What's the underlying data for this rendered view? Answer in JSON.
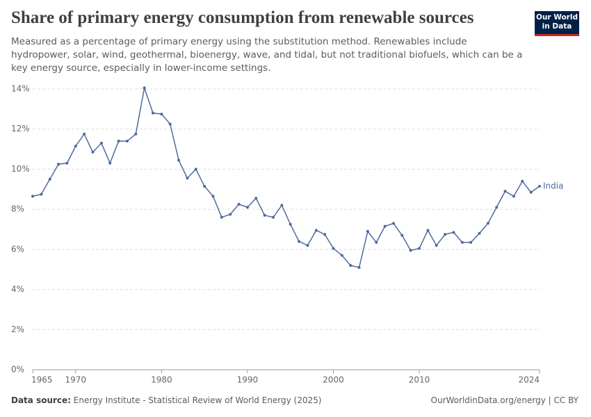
{
  "chart_data": {
    "type": "line",
    "title": "Share of primary energy consumption from renewable sources",
    "subtitle": "Measured as a percentage of primary energy using the substitution method. Renewables include hydropower, solar, wind, geothermal, bioenergy, wave, and tidal, but not traditional biofuels, which can be a key energy source, especially in lower-income settings.",
    "logo": [
      "Our World",
      "in Data"
    ],
    "source_label": "Data source:",
    "source": "Energy Institute - Statistical Review of World Energy (2025)",
    "footer_right": "OurWorldinData.org/energy | CC BY",
    "x": [
      1965,
      1966,
      1967,
      1968,
      1969,
      1970,
      1971,
      1972,
      1973,
      1974,
      1975,
      1976,
      1977,
      1978,
      1979,
      1980,
      1981,
      1982,
      1983,
      1984,
      1985,
      1986,
      1987,
      1988,
      1989,
      1990,
      1991,
      1992,
      1993,
      1994,
      1995,
      1996,
      1997,
      1998,
      1999,
      2000,
      2001,
      2002,
      2003,
      2004,
      2005,
      2006,
      2007,
      2008,
      2009,
      2010,
      2011,
      2012,
      2013,
      2014,
      2015,
      2016,
      2017,
      2018,
      2019,
      2020,
      2021,
      2022,
      2023,
      2024
    ],
    "series": [
      {
        "name": "India",
        "color": "#4c6a9c",
        "values": [
          8.65,
          8.75,
          9.5,
          10.25,
          10.3,
          11.15,
          11.75,
          10.85,
          11.3,
          10.3,
          11.4,
          11.4,
          11.75,
          14.05,
          12.8,
          12.75,
          12.25,
          10.45,
          9.55,
          10.0,
          9.15,
          8.65,
          7.6,
          7.75,
          8.25,
          8.1,
          8.55,
          7.7,
          7.6,
          8.2,
          7.25,
          6.4,
          6.2,
          6.95,
          6.75,
          6.05,
          5.7,
          5.2,
          5.1,
          6.9,
          6.35,
          7.15,
          7.3,
          6.7,
          5.95,
          6.05,
          6.95,
          6.2,
          6.75,
          6.85,
          6.35,
          6.35,
          6.8,
          7.3,
          8.1,
          8.9,
          8.65,
          9.4,
          8.85,
          9.15
        ]
      }
    ],
    "xlim": [
      1965,
      2024
    ],
    "xticks": [
      1965,
      1970,
      1980,
      1990,
      2000,
      2010,
      2024
    ],
    "ylim": [
      0,
      14
    ],
    "yticks": [
      {
        "value": 0,
        "label": "0%"
      },
      {
        "value": 2,
        "label": "2%"
      },
      {
        "value": 4,
        "label": "4%"
      },
      {
        "value": 6,
        "label": "6%"
      },
      {
        "value": 8,
        "label": "8%"
      },
      {
        "value": 10,
        "label": "10%"
      },
      {
        "value": 12,
        "label": "12%"
      },
      {
        "value": 14,
        "label": "14%"
      }
    ],
    "grid": true
  }
}
